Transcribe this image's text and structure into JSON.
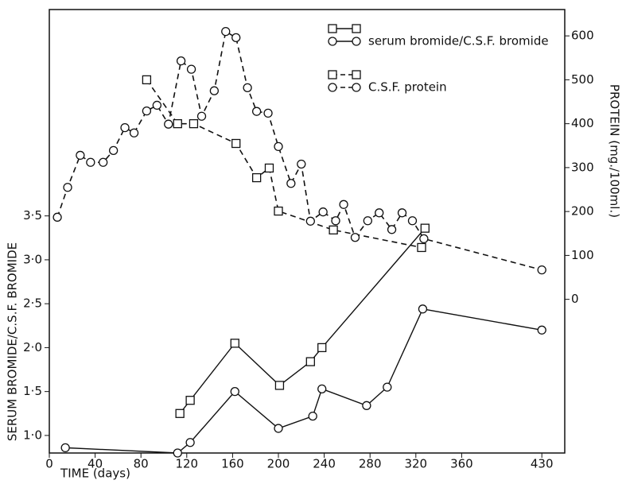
{
  "chart_data": {
    "type": "line",
    "x_label": "TIME (days)",
    "y_label": "SERUM BROMIDE/C.S.F. BROMIDE",
    "y2_label": "PROTEIN (mg./100ml.)",
    "xlim": [
      0,
      450
    ],
    "xticks": [
      0,
      40,
      80,
      120,
      160,
      200,
      240,
      280,
      320,
      360,
      430
    ],
    "ylim": [
      0.8,
      5.85
    ],
    "yticks": [
      {
        "value": 1,
        "label": "1·0"
      },
      {
        "value": 1.5,
        "label": "1·5"
      },
      {
        "value": 2,
        "label": "2·0"
      },
      {
        "value": 2.5,
        "label": "2·5"
      },
      {
        "value": 3,
        "label": "3·0"
      },
      {
        "value": 3.5,
        "label": "3·5"
      }
    ],
    "y2lim": [
      -350,
      660
    ],
    "y2ticks": [
      0,
      100,
      200,
      300,
      400,
      500,
      600
    ],
    "series": [
      {
        "name": "serum bromide/C.S.F. bromide",
        "marker": "square",
        "dash": false,
        "color": "#111",
        "x": [
          114,
          123,
          162,
          201,
          228,
          238,
          328
        ],
        "values": [
          1.25,
          1.4,
          2.05,
          1.57,
          1.84,
          2.0,
          3.36
        ]
      },
      {
        "marker": "circle",
        "dash": false,
        "color": "#111",
        "x": [
          14,
          112,
          123,
          162,
          200,
          230,
          238,
          277,
          295,
          326,
          430
        ],
        "values": [
          0.86,
          0.8,
          0.92,
          1.5,
          1.08,
          1.22,
          1.53,
          1.34,
          1.55,
          2.44,
          2.2
        ]
      },
      {
        "name": "C.S.F. protein",
        "marker": "square",
        "dash": true,
        "axis": "y2",
        "color": "#111",
        "x": [
          85,
          112,
          126,
          163,
          181,
          192,
          200,
          248,
          325
        ],
        "values": [
          500,
          400,
          400,
          355,
          277,
          299,
          201,
          158,
          118
        ]
      },
      {
        "marker": "circle",
        "dash": true,
        "axis": "y2",
        "color": "#111",
        "x": [
          7,
          16,
          27,
          36,
          47,
          56,
          66,
          74,
          85,
          94,
          104,
          115,
          124,
          133,
          144,
          154,
          163,
          173,
          181,
          191,
          200,
          211,
          220,
          228,
          239,
          250,
          257,
          267,
          278,
          288,
          299,
          308,
          317,
          327,
          430
        ],
        "values": [
          187,
          255,
          328,
          312,
          312,
          339,
          391,
          379,
          429,
          442,
          399,
          543,
          524,
          417,
          475,
          610,
          596,
          482,
          428,
          424,
          348,
          264,
          308,
          178,
          199,
          179,
          216,
          141,
          179,
          197,
          159,
          197,
          179,
          138,
          67
        ]
      }
    ]
  }
}
